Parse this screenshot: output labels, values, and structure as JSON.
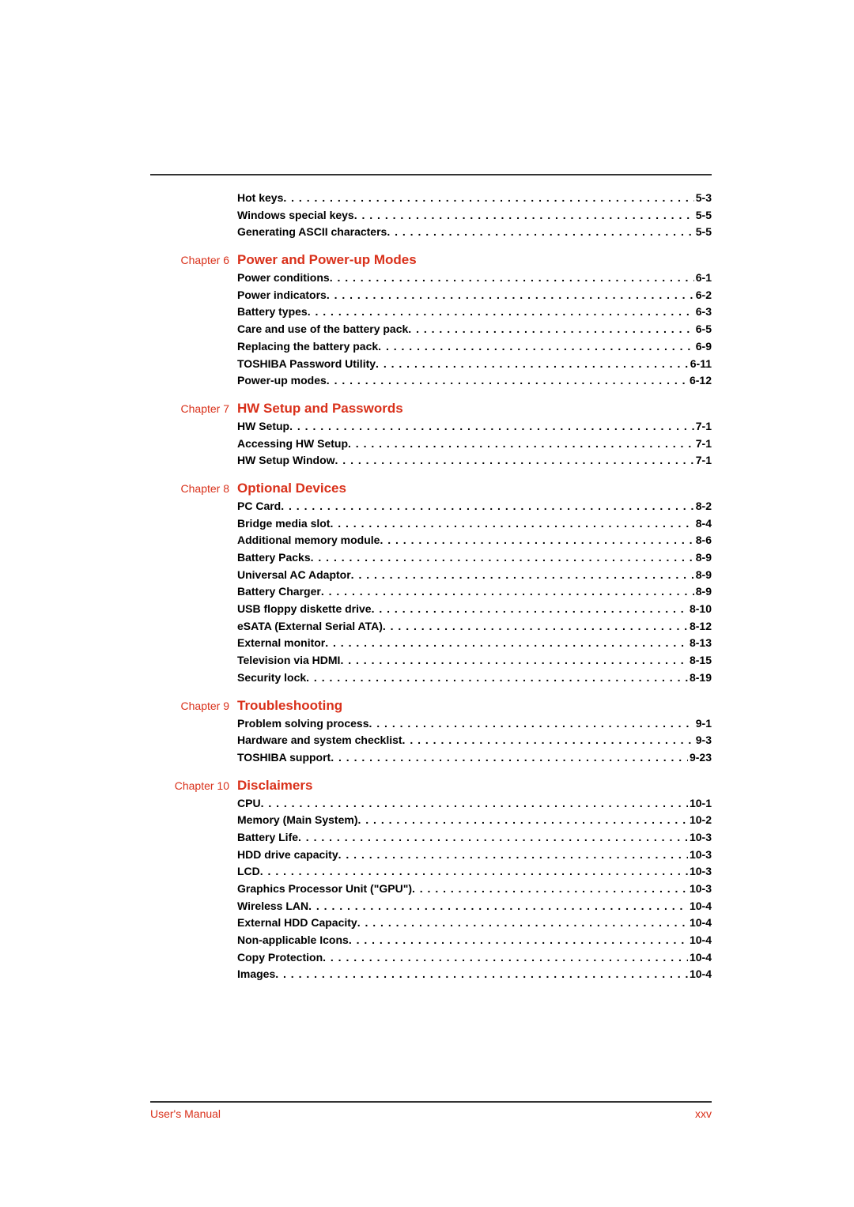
{
  "top_entries": [
    {
      "title": "Hot keys",
      "page": "5-3"
    },
    {
      "title": "Windows special keys",
      "page": "5-5"
    },
    {
      "title": "Generating ASCII characters",
      "page": "5-5"
    }
  ],
  "chapters": [
    {
      "label": "Chapter 6",
      "title": "Power and Power-up Modes",
      "entries": [
        {
          "title": "Power conditions",
          "page": "6-1"
        },
        {
          "title": "Power indicators",
          "page": "6-2"
        },
        {
          "title": "Battery types",
          "page": "6-3"
        },
        {
          "title": "Care and use of the battery pack",
          "page": "6-5"
        },
        {
          "title": "Replacing the battery pack",
          "page": "6-9"
        },
        {
          "title": "TOSHIBA Password Utility",
          "page": "6-11"
        },
        {
          "title": "Power-up modes",
          "page": "6-12"
        }
      ]
    },
    {
      "label": "Chapter 7",
      "title": "HW Setup and Passwords",
      "entries": [
        {
          "title": "HW Setup",
          "page": "7-1"
        },
        {
          "title": "Accessing HW Setup",
          "page": "7-1"
        },
        {
          "title": "HW Setup Window",
          "page": "7-1"
        }
      ]
    },
    {
      "label": "Chapter 8",
      "title": "Optional Devices",
      "entries": [
        {
          "title": "PC Card",
          "page": "8-2"
        },
        {
          "title": "Bridge media slot",
          "page": "8-4"
        },
        {
          "title": "Additional memory module",
          "page": "8-6"
        },
        {
          "title": "Battery Packs",
          "page": "8-9"
        },
        {
          "title": "Universal AC Adaptor",
          "page": "8-9"
        },
        {
          "title": "Battery Charger",
          "page": "8-9"
        },
        {
          "title": "USB floppy diskette drive",
          "page": "8-10"
        },
        {
          "title": "eSATA (External Serial ATA)",
          "page": "8-12"
        },
        {
          "title": "External monitor",
          "page": "8-13"
        },
        {
          "title": "Television via HDMI",
          "page": "8-15"
        },
        {
          "title": "Security lock",
          "page": "8-19"
        }
      ]
    },
    {
      "label": "Chapter 9",
      "title": "Troubleshooting",
      "entries": [
        {
          "title": "Problem solving process",
          "page": "9-1"
        },
        {
          "title": "Hardware and system checklist",
          "page": "9-3"
        },
        {
          "title": "TOSHIBA support",
          "page": "9-23"
        }
      ]
    },
    {
      "label": "Chapter 10",
      "title": "Disclaimers",
      "entries": [
        {
          "title": "CPU",
          "page": "10-1"
        },
        {
          "title": "Memory (Main System)",
          "page": "10-2"
        },
        {
          "title": "Battery Life",
          "page": "10-3"
        },
        {
          "title": "HDD drive capacity",
          "page": "10-3"
        },
        {
          "title": "LCD",
          "page": "10-3"
        },
        {
          "title": "Graphics Processor Unit (\"GPU\")",
          "page": "10-3"
        },
        {
          "title": "Wireless LAN",
          "page": "10-4"
        },
        {
          "title": "External HDD Capacity",
          "page": "10-4"
        },
        {
          "title": "Non-applicable Icons",
          "page": "10-4"
        },
        {
          "title": "Copy Protection",
          "page": "10-4"
        },
        {
          "title": "Images",
          "page": "10-4"
        }
      ]
    }
  ],
  "footer": {
    "left": "User's Manual",
    "right": "xxv"
  },
  "colors": {
    "accent": "#d9301a",
    "text": "#000000",
    "rule": "#333333",
    "background": "#ffffff"
  }
}
